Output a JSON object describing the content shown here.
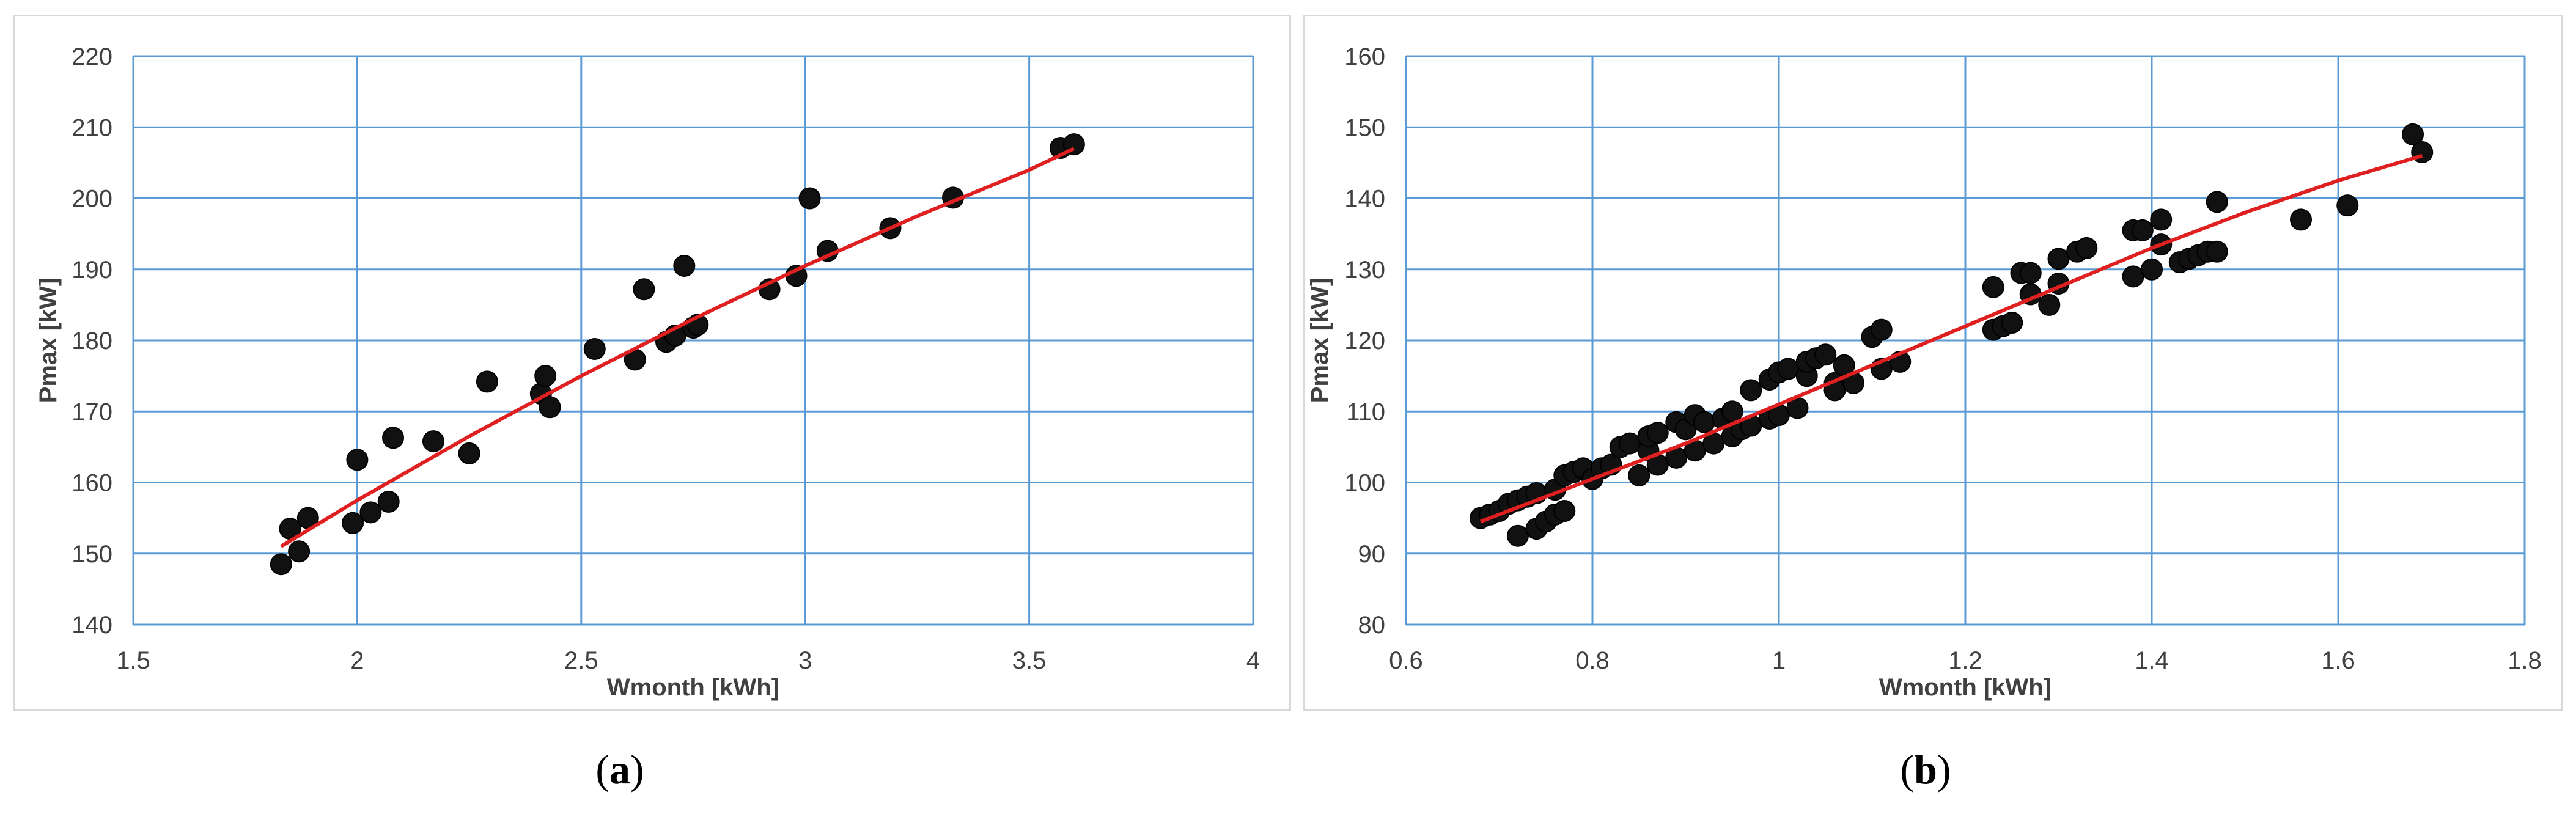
{
  "captions": {
    "a_open": "(",
    "a_letter": "a",
    "a_close": ")",
    "b_open": "(",
    "b_letter": "b",
    "b_close": ")"
  },
  "chart_data": [
    {
      "type": "scatter",
      "panel": "a",
      "title": "",
      "xlabel": "Wmonth [kWh]",
      "ylabel": "Pmax [kW]",
      "xlim": [
        1.5,
        4
      ],
      "ylim": [
        140,
        220
      ],
      "xticks": [
        1.5,
        2,
        2.5,
        3,
        3.5,
        4
      ],
      "yticks": [
        140,
        150,
        160,
        170,
        180,
        190,
        200,
        210,
        220
      ],
      "grid": true,
      "point_color": "#111111",
      "trend_color": "#e02020",
      "points": [
        [
          1.83,
          148.5
        ],
        [
          1.85,
          153.5
        ],
        [
          1.87,
          150.3
        ],
        [
          1.89,
          155
        ],
        [
          1.99,
          154.3
        ],
        [
          2.0,
          163.2
        ],
        [
          2.03,
          155.8
        ],
        [
          2.07,
          157.3
        ],
        [
          2.08,
          166.3
        ],
        [
          2.17,
          165.8
        ],
        [
          2.25,
          164.1
        ],
        [
          2.29,
          174.2
        ],
        [
          2.41,
          172.5
        ],
        [
          2.42,
          175
        ],
        [
          2.43,
          170.6
        ],
        [
          2.53,
          178.8
        ],
        [
          2.62,
          177.3
        ],
        [
          2.64,
          187.2
        ],
        [
          2.69,
          179.8
        ],
        [
          2.71,
          180.7
        ],
        [
          2.73,
          190.5
        ],
        [
          2.75,
          181.8
        ],
        [
          2.76,
          182.2
        ],
        [
          2.92,
          187.2
        ],
        [
          2.98,
          189.1
        ],
        [
          3.01,
          200
        ],
        [
          3.05,
          192.6
        ],
        [
          3.19,
          195.8
        ],
        [
          3.33,
          200.1
        ],
        [
          3.57,
          207.1
        ],
        [
          3.6,
          207.6
        ]
      ],
      "trend": [
        [
          1.83,
          151
        ],
        [
          2.0,
          157.5
        ],
        [
          2.25,
          166.5
        ],
        [
          2.5,
          175
        ],
        [
          2.75,
          183
        ],
        [
          3.0,
          190.5
        ],
        [
          3.25,
          197.5
        ],
        [
          3.5,
          204
        ],
        [
          3.6,
          207
        ]
      ]
    },
    {
      "type": "scatter",
      "panel": "b",
      "title": "",
      "xlabel": "Wmonth [kWh]",
      "ylabel": "Pmax [kW]",
      "xlim": [
        0.6,
        1.8
      ],
      "ylim": [
        80,
        160
      ],
      "xticks": [
        0.6,
        0.8,
        1,
        1.2,
        1.4,
        1.6,
        1.8
      ],
      "yticks": [
        80,
        90,
        100,
        110,
        120,
        130,
        140,
        150,
        160
      ],
      "grid": true,
      "point_color": "#111111",
      "trend_color": "#e02020",
      "points": [
        [
          0.68,
          95
        ],
        [
          0.69,
          95.5
        ],
        [
          0.7,
          96
        ],
        [
          0.71,
          97
        ],
        [
          0.72,
          97.5
        ],
        [
          0.72,
          92.5
        ],
        [
          0.73,
          98
        ],
        [
          0.74,
          93.5
        ],
        [
          0.74,
          98.5
        ],
        [
          0.75,
          94.5
        ],
        [
          0.76,
          99
        ],
        [
          0.76,
          95.5
        ],
        [
          0.77,
          96
        ],
        [
          0.77,
          101
        ],
        [
          0.78,
          101.5
        ],
        [
          0.79,
          102
        ],
        [
          0.8,
          100.5
        ],
        [
          0.81,
          102
        ],
        [
          0.82,
          102.5
        ],
        [
          0.83,
          105
        ],
        [
          0.84,
          105.5
        ],
        [
          0.85,
          101
        ],
        [
          0.86,
          104.5
        ],
        [
          0.86,
          106.5
        ],
        [
          0.87,
          107
        ],
        [
          0.87,
          102.5
        ],
        [
          0.89,
          103.5
        ],
        [
          0.89,
          108.5
        ],
        [
          0.9,
          107.5
        ],
        [
          0.91,
          104.5
        ],
        [
          0.91,
          109.5
        ],
        [
          0.92,
          108.5
        ],
        [
          0.93,
          105.5
        ],
        [
          0.94,
          109
        ],
        [
          0.95,
          106.5
        ],
        [
          0.95,
          110
        ],
        [
          0.96,
          107.5
        ],
        [
          0.97,
          108
        ],
        [
          0.97,
          113
        ],
        [
          0.99,
          109
        ],
        [
          0.99,
          114.5
        ],
        [
          1.0,
          109.5
        ],
        [
          1.0,
          115.5
        ],
        [
          1.01,
          116
        ],
        [
          1.02,
          110.5
        ],
        [
          1.03,
          115
        ],
        [
          1.03,
          117
        ],
        [
          1.04,
          117.5
        ],
        [
          1.05,
          118
        ],
        [
          1.06,
          114
        ],
        [
          1.06,
          113
        ],
        [
          1.07,
          116.5
        ],
        [
          1.08,
          114
        ],
        [
          1.1,
          120.5
        ],
        [
          1.11,
          121.5
        ],
        [
          1.11,
          116
        ],
        [
          1.13,
          117
        ],
        [
          1.23,
          121.5
        ],
        [
          1.23,
          127.5
        ],
        [
          1.24,
          122
        ],
        [
          1.25,
          122.5
        ],
        [
          1.26,
          129.5
        ],
        [
          1.27,
          126.5
        ],
        [
          1.27,
          129.5
        ],
        [
          1.29,
          125
        ],
        [
          1.3,
          128
        ],
        [
          1.3,
          131.5
        ],
        [
          1.32,
          132.5
        ],
        [
          1.33,
          133
        ],
        [
          1.38,
          135.5
        ],
        [
          1.38,
          129
        ],
        [
          1.39,
          135.5
        ],
        [
          1.4,
          130
        ],
        [
          1.41,
          133.5
        ],
        [
          1.41,
          137
        ],
        [
          1.43,
          131
        ],
        [
          1.44,
          131.5
        ],
        [
          1.45,
          132
        ],
        [
          1.46,
          132.5
        ],
        [
          1.47,
          132.5
        ],
        [
          1.47,
          139.5
        ],
        [
          1.56,
          137
        ],
        [
          1.61,
          139
        ],
        [
          1.68,
          149
        ],
        [
          1.69,
          146.5
        ]
      ],
      "trend": [
        [
          0.68,
          94.5
        ],
        [
          0.8,
          100.5
        ],
        [
          0.9,
          105.5
        ],
        [
          1.0,
          111
        ],
        [
          1.1,
          116.5
        ],
        [
          1.2,
          122
        ],
        [
          1.3,
          127.5
        ],
        [
          1.4,
          133
        ],
        [
          1.5,
          138
        ],
        [
          1.6,
          142.5
        ],
        [
          1.69,
          146
        ]
      ]
    }
  ]
}
